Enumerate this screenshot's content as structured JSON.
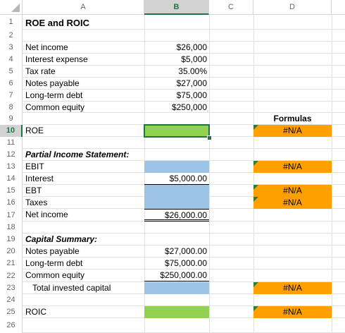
{
  "columns": [
    "A",
    "B",
    "C",
    "D"
  ],
  "selected_column": "B",
  "rows": [
    "1",
    "2",
    "3",
    "4",
    "5",
    "6",
    "7",
    "8",
    "9",
    "10",
    "11",
    "12",
    "13",
    "14",
    "15",
    "16",
    "17",
    "18",
    "19",
    "20",
    "21",
    "22",
    "23",
    "24",
    "25",
    "26"
  ],
  "selected_row": "10",
  "cells": {
    "A1": "ROE and ROIC",
    "A3": "Net income",
    "B3": "$26,000",
    "A4": "Interest expense",
    "B4": "$5,000",
    "A5": "Tax rate",
    "B5": "35.00%",
    "A6": "Notes payable",
    "B6": "$27,000",
    "A7": "Long-term debt",
    "B7": "$75,000",
    "A8": "Common equity",
    "B8": "$250,000",
    "D9": "Formulas",
    "A10": "ROE",
    "D10": "#N/A",
    "A12": "Partial Income Statement:",
    "A13": "EBIT",
    "D13": "#N/A",
    "A14": "Interest",
    "B14": "$5,000.00",
    "A15": "EBT",
    "D15": "#N/A",
    "A16": "Taxes",
    "D16": "#N/A",
    "A17": "Net income",
    "B17": "$26,000.00",
    "A19": "Capital Summary:",
    "A20": "Notes payable",
    "B20": "$27,000.00",
    "A21": "Long-term debt",
    "B21": "$75,000.00",
    "A22": "Common equity",
    "B22": "$250,000.00",
    "A23": "Total invested capital",
    "D23": "#N/A",
    "A25": "ROIC",
    "D25": "#N/A"
  },
  "colors": {
    "input_fill": "#92d050",
    "calc_fill": "#9dc3e6",
    "formula_fill": "#ffa000",
    "selection": "#217346"
  }
}
